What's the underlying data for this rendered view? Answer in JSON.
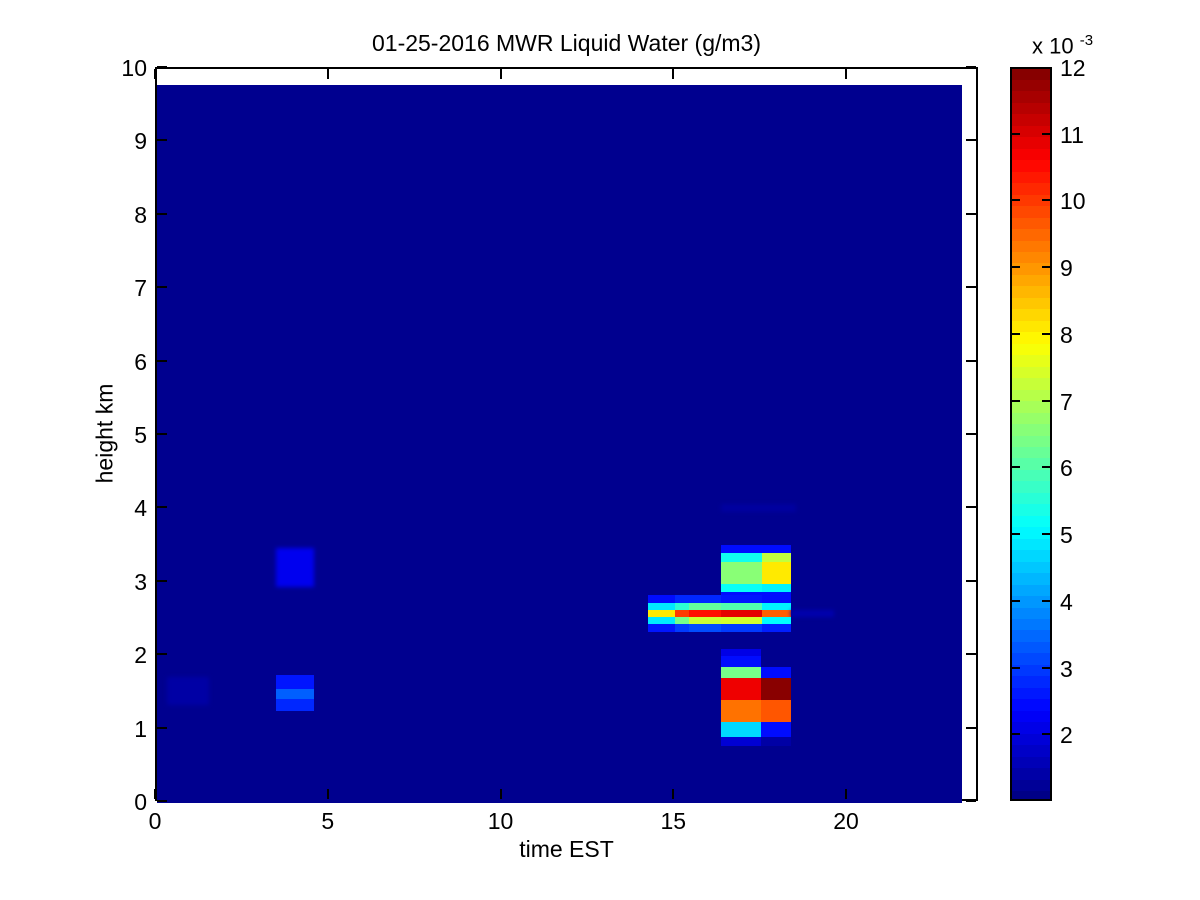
{
  "title": "01-25-2016 MWR Liquid Water (g/m3)",
  "xlabel": "time EST",
  "ylabel": "height km",
  "colorbar": {
    "exp_base": "x 10",
    "exp_power": "-3",
    "min": 1,
    "max": 12,
    "ticks": [
      2,
      3,
      4,
      5,
      6,
      7,
      8,
      9,
      10,
      11,
      12
    ],
    "segments": 64
  },
  "axes": {
    "x_ticks": [
      0,
      5,
      10,
      15,
      20
    ],
    "y_ticks": [
      0,
      1,
      2,
      3,
      4,
      5,
      6,
      7,
      8,
      9,
      10
    ],
    "xlim": [
      0,
      23.8
    ],
    "ylim": [
      0,
      10
    ]
  },
  "chart_data": {
    "type": "heatmap",
    "title": "01-25-2016 MWR Liquid Water (g/m3)",
    "xlabel": "time EST",
    "ylabel": "height km",
    "units": "1e-3 g/m3",
    "value_scale": "values are liquid water content in units of 1e-3 g/m3, colormap jet, caxis 1 to 12",
    "bg_color": "#00008F",
    "background_value": 1.0,
    "data_extent": {
      "t": [
        0,
        23.3
      ],
      "h": [
        0,
        9.78
      ]
    },
    "cells": [
      {
        "t": [
          0.3,
          1.5
        ],
        "h": [
          1.33,
          1.72
        ],
        "v": 1.4,
        "soft": true
      },
      {
        "t": [
          3.45,
          4.55
        ],
        "h": [
          2.94,
          3.47
        ],
        "v": 2.2,
        "soft": true
      },
      {
        "t": [
          3.45,
          4.55
        ],
        "h": [
          1.55,
          1.74
        ],
        "v": 2.6
      },
      {
        "t": [
          3.45,
          4.55
        ],
        "h": [
          1.42,
          1.55
        ],
        "v": 3.4
      },
      {
        "t": [
          3.45,
          4.55
        ],
        "h": [
          1.25,
          1.42
        ],
        "v": 2.8
      },
      {
        "t": [
          14.2,
          15.0
        ],
        "h": [
          2.72,
          2.83
        ],
        "v": 2.5
      },
      {
        "t": [
          15.0,
          15.4
        ],
        "h": [
          2.72,
          2.83
        ],
        "v": 2.8
      },
      {
        "t": [
          15.4,
          16.33
        ],
        "h": [
          2.72,
          2.83
        ],
        "v": 2.8
      },
      {
        "t": [
          16.33,
          17.5
        ],
        "h": [
          2.72,
          2.83
        ],
        "v": 2.6
      },
      {
        "t": [
          17.5,
          18.35
        ],
        "h": [
          2.72,
          2.83
        ],
        "v": 2.5
      },
      {
        "t": [
          14.2,
          15.0
        ],
        "h": [
          2.63,
          2.72
        ],
        "v": 4.9
      },
      {
        "t": [
          15.0,
          15.4
        ],
        "h": [
          2.63,
          2.72
        ],
        "v": 5.6
      },
      {
        "t": [
          15.4,
          16.33
        ],
        "h": [
          2.63,
          2.72
        ],
        "v": 6.2
      },
      {
        "t": [
          16.33,
          17.5
        ],
        "h": [
          2.63,
          2.72
        ],
        "v": 6.0
      },
      {
        "t": [
          17.5,
          18.35
        ],
        "h": [
          2.63,
          2.72
        ],
        "v": 5.0
      },
      {
        "t": [
          14.2,
          15.0
        ],
        "h": [
          2.53,
          2.63
        ],
        "v": 8.1
      },
      {
        "t": [
          15.0,
          15.4
        ],
        "h": [
          2.53,
          2.63
        ],
        "v": 10.0
      },
      {
        "t": [
          15.4,
          16.33
        ],
        "h": [
          2.53,
          2.63
        ],
        "v": 10.5
      },
      {
        "t": [
          16.33,
          17.5
        ],
        "h": [
          2.53,
          2.63
        ],
        "v": 10.9
      },
      {
        "t": [
          17.5,
          18.35
        ],
        "h": [
          2.53,
          2.63
        ],
        "v": 9.6
      },
      {
        "t": [
          18.35,
          19.6
        ],
        "h": [
          2.53,
          2.63
        ],
        "v": 1.5,
        "soft": true
      },
      {
        "t": [
          14.2,
          15.0
        ],
        "h": [
          2.44,
          2.53
        ],
        "v": 4.9
      },
      {
        "t": [
          15.0,
          15.4
        ],
        "h": [
          2.44,
          2.53
        ],
        "v": 6.4
      },
      {
        "t": [
          15.4,
          16.33
        ],
        "h": [
          2.44,
          2.53
        ],
        "v": 7.3
      },
      {
        "t": [
          16.33,
          17.5
        ],
        "h": [
          2.44,
          2.53
        ],
        "v": 7.4
      },
      {
        "t": [
          17.5,
          18.35
        ],
        "h": [
          2.44,
          2.53
        ],
        "v": 5.1
      },
      {
        "t": [
          14.2,
          15.0
        ],
        "h": [
          2.33,
          2.44
        ],
        "v": 2.6
      },
      {
        "t": [
          15.0,
          15.4
        ],
        "h": [
          2.33,
          2.44
        ],
        "v": 3.0
      },
      {
        "t": [
          15.4,
          16.33
        ],
        "h": [
          2.33,
          2.44
        ],
        "v": 3.2
      },
      {
        "t": [
          16.33,
          17.5
        ],
        "h": [
          2.33,
          2.44
        ],
        "v": 3.0
      },
      {
        "t": [
          17.5,
          18.35
        ],
        "h": [
          2.33,
          2.44
        ],
        "v": 2.7
      },
      {
        "t": [
          16.33,
          18.35
        ],
        "h": [
          3.4,
          3.51
        ],
        "v": 2.5
      },
      {
        "t": [
          16.33,
          17.5
        ],
        "h": [
          3.28,
          3.4
        ],
        "v": 5.3
      },
      {
        "t": [
          17.5,
          18.35
        ],
        "h": [
          3.28,
          3.4
        ],
        "v": 7.2
      },
      {
        "t": [
          16.33,
          17.5
        ],
        "h": [
          2.99,
          3.28
        ],
        "v": 6.6
      },
      {
        "t": [
          17.5,
          18.35
        ],
        "h": [
          2.99,
          3.28
        ],
        "v": 8.1
      },
      {
        "t": [
          16.33,
          17.5
        ],
        "h": [
          2.87,
          2.99
        ],
        "v": 5.2
      },
      {
        "t": [
          17.5,
          18.35
        ],
        "h": [
          2.87,
          2.99
        ],
        "v": 5.0
      },
      {
        "t": [
          16.33,
          18.35
        ],
        "h": [
          2.83,
          2.87
        ],
        "v": 2.5
      },
      {
        "t": [
          16.33,
          18.5
        ],
        "h": [
          3.97,
          4.08
        ],
        "v": 1.35,
        "soft": true
      },
      {
        "t": [
          16.33,
          17.47
        ],
        "h": [
          2.0,
          2.1
        ],
        "v": 2.1
      },
      {
        "t": [
          16.33,
          17.47
        ],
        "h": [
          1.85,
          2.0
        ],
        "v": 2.5
      },
      {
        "t": [
          16.33,
          17.47
        ],
        "h": [
          1.7,
          1.85
        ],
        "v": 6.4
      },
      {
        "t": [
          17.47,
          18.35
        ],
        "h": [
          1.7,
          1.85
        ],
        "v": 2.5
      },
      {
        "t": [
          16.33,
          17.47
        ],
        "h": [
          1.4,
          1.7
        ],
        "v": 10.8
      },
      {
        "t": [
          17.47,
          18.35
        ],
        "h": [
          1.4,
          1.7
        ],
        "v": 11.9
      },
      {
        "t": [
          16.33,
          17.47
        ],
        "h": [
          1.1,
          1.4
        ],
        "v": 9.4
      },
      {
        "t": [
          17.47,
          18.35
        ],
        "h": [
          1.1,
          1.4
        ],
        "v": 9.7
      },
      {
        "t": [
          16.33,
          17.47
        ],
        "h": [
          0.9,
          1.1
        ],
        "v": 4.7
      },
      {
        "t": [
          17.47,
          18.35
        ],
        "h": [
          0.9,
          1.1
        ],
        "v": 2.5
      },
      {
        "t": [
          16.33,
          17.47
        ],
        "h": [
          0.77,
          0.9
        ],
        "v": 1.9
      },
      {
        "t": [
          17.47,
          18.35
        ],
        "h": [
          0.77,
          0.9
        ],
        "v": 1.4
      }
    ]
  }
}
